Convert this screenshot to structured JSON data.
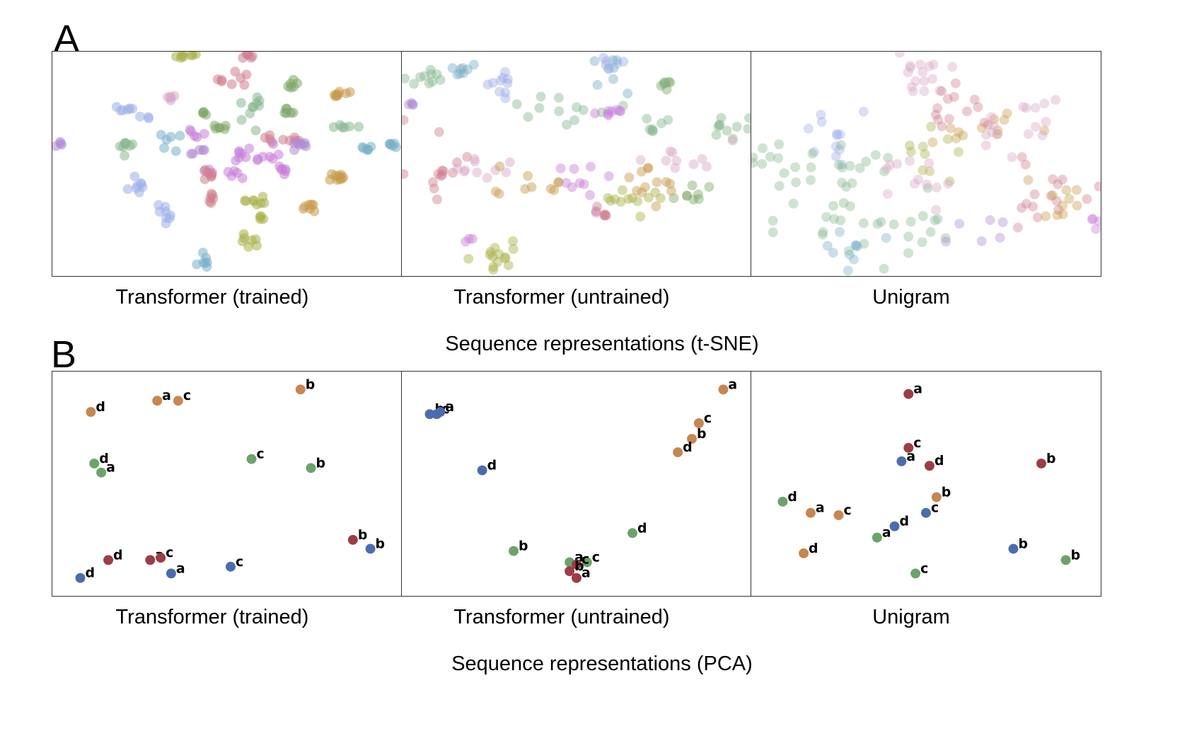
{
  "figure": {
    "panel_a": {
      "letter": "A",
      "section_title": "Sequence representations (t-SNE)"
    },
    "panel_b": {
      "letter": "B",
      "section_title": "Sequence representations (PCA)"
    },
    "subplot_titles": [
      "Transformer (trained)",
      "Transformer (untrained)",
      "Unigram"
    ]
  },
  "colors": {
    "tsne_palette": [
      "#9db0e8",
      "#d07f8e",
      "#7fa86a",
      "#c79a4c",
      "#a9b148",
      "#c77fd8",
      "#7ab0c8",
      "#b08ad6",
      "#88b890",
      "#d9a7c6"
    ],
    "pca": {
      "red": "#9b3d45",
      "blue": "#4c6cae",
      "green": "#6ba36b",
      "orange": "#c8864f"
    }
  },
  "chart_data": [
    {
      "type": "scatter",
      "method": "t-SNE",
      "title": "Transformer (trained)",
      "point_radius": 7,
      "opacity": 0.55,
      "clusters": [
        {
          "color": "#a9b148",
          "n": 8,
          "x": 0.38,
          "y": 0.02,
          "sx": 0.018,
          "sy": 0.008,
          "orient": "h"
        },
        {
          "color": "#d07f8e",
          "n": 6,
          "x": 0.56,
          "y": 0.02,
          "sx": 0.01,
          "sy": 0.006
        },
        {
          "color": "#d07f8e",
          "n": 8,
          "x": 0.53,
          "y": 0.12,
          "sx": 0.025,
          "sy": 0.025
        },
        {
          "color": "#7fa86a",
          "n": 6,
          "x": 0.68,
          "y": 0.15,
          "sx": 0.01,
          "sy": 0.01
        },
        {
          "color": "#c79a4c",
          "n": 8,
          "x": 0.83,
          "y": 0.19,
          "sx": 0.018,
          "sy": 0.006
        },
        {
          "color": "#d9a7c6",
          "n": 5,
          "x": 0.33,
          "y": 0.2,
          "sx": 0.01,
          "sy": 0.008
        },
        {
          "color": "#9db0e8",
          "n": 6,
          "x": 0.21,
          "y": 0.26,
          "sx": 0.015,
          "sy": 0.01
        },
        {
          "color": "#9db0e8",
          "n": 3,
          "x": 0.27,
          "y": 0.29,
          "sx": 0.01,
          "sy": 0.006
        },
        {
          "color": "#7fa86a",
          "n": 4,
          "x": 0.43,
          "y": 0.28,
          "sx": 0.01,
          "sy": 0.01
        },
        {
          "color": "#88b890",
          "n": 10,
          "x": 0.57,
          "y": 0.26,
          "sx": 0.02,
          "sy": 0.04
        },
        {
          "color": "#7fa86a",
          "n": 6,
          "x": 0.67,
          "y": 0.27,
          "sx": 0.012,
          "sy": 0.012
        },
        {
          "color": "#88b890",
          "n": 6,
          "x": 0.83,
          "y": 0.33,
          "sx": 0.025,
          "sy": 0.01
        },
        {
          "color": "#7fa86a",
          "n": 6,
          "x": 0.47,
          "y": 0.33,
          "sx": 0.01,
          "sy": 0.012
        },
        {
          "color": "#c77fd8",
          "n": 5,
          "x": 0.4,
          "y": 0.36,
          "sx": 0.015,
          "sy": 0.01
        },
        {
          "color": "#7ab0c8",
          "n": 6,
          "x": 0.32,
          "y": 0.39,
          "sx": 0.02,
          "sy": 0.02
        },
        {
          "color": "#d07f8e",
          "n": 4,
          "x": 0.62,
          "y": 0.39,
          "sx": 0.01,
          "sy": 0.01
        },
        {
          "color": "#88b890",
          "n": 8,
          "x": 0.21,
          "y": 0.44,
          "sx": 0.01,
          "sy": 0.03
        },
        {
          "color": "#b08ad6",
          "n": 5,
          "x": 0.42,
          "y": 0.44,
          "sx": 0.015,
          "sy": 0.008
        },
        {
          "color": "#c77fd8",
          "n": 14,
          "x": 0.56,
          "y": 0.46,
          "sx": 0.05,
          "sy": 0.02
        },
        {
          "color": "#d07f8e",
          "n": 5,
          "x": 0.68,
          "y": 0.4,
          "sx": 0.015,
          "sy": 0.01
        },
        {
          "color": "#b08ad6",
          "n": 8,
          "x": 0.7,
          "y": 0.42,
          "sx": 0.02,
          "sy": 0.015
        },
        {
          "color": "#7ab0c8",
          "n": 6,
          "x": 0.9,
          "y": 0.43,
          "sx": 0.012,
          "sy": 0.006
        },
        {
          "color": "#7ab0c8",
          "n": 6,
          "x": 0.97,
          "y": 0.42,
          "sx": 0.012,
          "sy": 0.006
        },
        {
          "color": "#b08ad6",
          "n": 4,
          "x": 0.02,
          "y": 0.41,
          "sx": 0.006,
          "sy": 0.006
        },
        {
          "color": "#c77fd8",
          "n": 8,
          "x": 0.49,
          "y": 0.54,
          "sx": 0.02,
          "sy": 0.01
        },
        {
          "color": "#d07f8e",
          "n": 6,
          "x": 0.45,
          "y": 0.55,
          "sx": 0.01,
          "sy": 0.015
        },
        {
          "color": "#c77fd8",
          "n": 6,
          "x": 0.66,
          "y": 0.52,
          "sx": 0.012,
          "sy": 0.01
        },
        {
          "color": "#c79a4c",
          "n": 10,
          "x": 0.82,
          "y": 0.56,
          "sx": 0.02,
          "sy": 0.01
        },
        {
          "color": "#9db0e8",
          "n": 8,
          "x": 0.24,
          "y": 0.6,
          "sx": 0.015,
          "sy": 0.025
        },
        {
          "color": "#d07f8e",
          "n": 6,
          "x": 0.46,
          "y": 0.65,
          "sx": 0.008,
          "sy": 0.015
        },
        {
          "color": "#a9b148",
          "n": 8,
          "x": 0.59,
          "y": 0.67,
          "sx": 0.02,
          "sy": 0.012
        },
        {
          "color": "#c79a4c",
          "n": 7,
          "x": 0.73,
          "y": 0.69,
          "sx": 0.02,
          "sy": 0.01
        },
        {
          "color": "#a9b148",
          "n": 4,
          "x": 0.6,
          "y": 0.74,
          "sx": 0.008,
          "sy": 0.006
        },
        {
          "color": "#9db0e8",
          "n": 8,
          "x": 0.33,
          "y": 0.73,
          "sx": 0.015,
          "sy": 0.02
        },
        {
          "color": "#a9b148",
          "n": 7,
          "x": 0.57,
          "y": 0.84,
          "sx": 0.02,
          "sy": 0.015
        },
        {
          "color": "#7ab0c8",
          "n": 7,
          "x": 0.43,
          "y": 0.93,
          "sx": 0.015,
          "sy": 0.03
        }
      ]
    },
    {
      "type": "scatter",
      "method": "t-SNE",
      "title": "Transformer (untrained)",
      "point_radius": 7,
      "opacity": 0.45,
      "clusters": [
        {
          "color": "#88b890",
          "n": 10,
          "x": 0.06,
          "y": 0.11,
          "sx": 0.03,
          "sy": 0.03
        },
        {
          "color": "#7ab0c8",
          "n": 8,
          "x": 0.16,
          "y": 0.09,
          "sx": 0.02,
          "sy": 0.02
        },
        {
          "color": "#9db0e8",
          "n": 10,
          "x": 0.29,
          "y": 0.13,
          "sx": 0.02,
          "sy": 0.04
        },
        {
          "color": "#7ab0c8",
          "n": 8,
          "x": 0.58,
          "y": 0.09,
          "sx": 0.04,
          "sy": 0.04
        },
        {
          "color": "#9db0e8",
          "n": 6,
          "x": 0.6,
          "y": 0.05,
          "sx": 0.02,
          "sy": 0.02
        },
        {
          "color": "#b08ad6",
          "n": 4,
          "x": 0.03,
          "y": 0.24,
          "sx": 0.01,
          "sy": 0.02
        },
        {
          "color": "#88b890",
          "n": 12,
          "x": 0.45,
          "y": 0.26,
          "sx": 0.07,
          "sy": 0.03
        },
        {
          "color": "#c77fd8",
          "n": 8,
          "x": 0.58,
          "y": 0.26,
          "sx": 0.03,
          "sy": 0.01
        },
        {
          "color": "#7fa86a",
          "n": 6,
          "x": 0.76,
          "y": 0.14,
          "sx": 0.015,
          "sy": 0.01
        },
        {
          "color": "#88b890",
          "n": 8,
          "x": 0.72,
          "y": 0.3,
          "sx": 0.02,
          "sy": 0.06
        },
        {
          "color": "#88b890",
          "n": 10,
          "x": 0.94,
          "y": 0.32,
          "sx": 0.03,
          "sy": 0.03
        },
        {
          "color": "#d07f8e",
          "n": 14,
          "x": 0.1,
          "y": 0.52,
          "sx": 0.04,
          "sy": 0.08
        },
        {
          "color": "#d9a7c6",
          "n": 10,
          "x": 0.22,
          "y": 0.52,
          "sx": 0.06,
          "sy": 0.02
        },
        {
          "color": "#c79a4c",
          "n": 10,
          "x": 0.35,
          "y": 0.58,
          "sx": 0.06,
          "sy": 0.03
        },
        {
          "color": "#c77fd8",
          "n": 10,
          "x": 0.48,
          "y": 0.62,
          "sx": 0.05,
          "sy": 0.05
        },
        {
          "color": "#d07f8e",
          "n": 6,
          "x": 0.56,
          "y": 0.72,
          "sx": 0.03,
          "sy": 0.02
        },
        {
          "color": "#c79a4c",
          "n": 12,
          "x": 0.73,
          "y": 0.56,
          "sx": 0.05,
          "sy": 0.05
        },
        {
          "color": "#d9a7c6",
          "n": 10,
          "x": 0.8,
          "y": 0.48,
          "sx": 0.05,
          "sy": 0.04
        },
        {
          "color": "#a9b148",
          "n": 12,
          "x": 0.66,
          "y": 0.66,
          "sx": 0.05,
          "sy": 0.03
        },
        {
          "color": "#7fa86a",
          "n": 8,
          "x": 0.84,
          "y": 0.62,
          "sx": 0.03,
          "sy": 0.02
        },
        {
          "color": "#c77fd8",
          "n": 3,
          "x": 0.19,
          "y": 0.84,
          "sx": 0.006,
          "sy": 0.01
        },
        {
          "color": "#a9b148",
          "n": 14,
          "x": 0.27,
          "y": 0.92,
          "sx": 0.035,
          "sy": 0.03
        }
      ]
    },
    {
      "type": "scatter",
      "method": "t-SNE",
      "title": "Unigram",
      "point_radius": 7,
      "opacity": 0.4,
      "clusters": [
        {
          "color": "#d9a7c6",
          "n": 16,
          "x": 0.5,
          "y": 0.12,
          "sx": 0.05,
          "sy": 0.06
        },
        {
          "color": "#d07f8e",
          "n": 14,
          "x": 0.62,
          "y": 0.26,
          "sx": 0.07,
          "sy": 0.06
        },
        {
          "color": "#c79a4c",
          "n": 12,
          "x": 0.66,
          "y": 0.36,
          "sx": 0.08,
          "sy": 0.08
        },
        {
          "color": "#d9a7c6",
          "n": 16,
          "x": 0.74,
          "y": 0.34,
          "sx": 0.08,
          "sy": 0.07
        },
        {
          "color": "#9db0e8",
          "n": 12,
          "x": 0.24,
          "y": 0.36,
          "sx": 0.05,
          "sy": 0.08
        },
        {
          "color": "#88b890",
          "n": 16,
          "x": 0.26,
          "y": 0.52,
          "sx": 0.08,
          "sy": 0.08
        },
        {
          "color": "#88b890",
          "n": 10,
          "x": 0.06,
          "y": 0.5,
          "sx": 0.03,
          "sy": 0.04
        },
        {
          "color": "#a9b148",
          "n": 10,
          "x": 0.54,
          "y": 0.44,
          "sx": 0.06,
          "sy": 0.06
        },
        {
          "color": "#d07f8e",
          "n": 16,
          "x": 0.82,
          "y": 0.64,
          "sx": 0.08,
          "sy": 0.08
        },
        {
          "color": "#c79a4c",
          "n": 10,
          "x": 0.9,
          "y": 0.7,
          "sx": 0.05,
          "sy": 0.05
        },
        {
          "color": "#d9a7c6",
          "n": 12,
          "x": 0.5,
          "y": 0.58,
          "sx": 0.06,
          "sy": 0.06
        },
        {
          "color": "#88b890",
          "n": 18,
          "x": 0.22,
          "y": 0.75,
          "sx": 0.1,
          "sy": 0.07
        },
        {
          "color": "#7ab0c8",
          "n": 10,
          "x": 0.28,
          "y": 0.88,
          "sx": 0.04,
          "sy": 0.05
        },
        {
          "color": "#88b890",
          "n": 10,
          "x": 0.46,
          "y": 0.8,
          "sx": 0.05,
          "sy": 0.06
        },
        {
          "color": "#b08ad6",
          "n": 6,
          "x": 0.66,
          "y": 0.78,
          "sx": 0.04,
          "sy": 0.04
        },
        {
          "color": "#c77fd8",
          "n": 4,
          "x": 0.98,
          "y": 0.76,
          "sx": 0.01,
          "sy": 0.02
        }
      ]
    },
    {
      "type": "scatter",
      "method": "PCA",
      "title": "Transformer (trained)",
      "points": [
        {
          "label": "d",
          "color": "orange",
          "x": 0.11,
          "y": 0.18
        },
        {
          "label": "a",
          "color": "orange",
          "x": 0.3,
          "y": 0.13
        },
        {
          "label": "c",
          "color": "orange",
          "x": 0.36,
          "y": 0.13
        },
        {
          "label": "b",
          "color": "orange",
          "x": 0.71,
          "y": 0.08
        },
        {
          "label": "d",
          "color": "green",
          "x": 0.12,
          "y": 0.41
        },
        {
          "label": "a",
          "color": "green",
          "x": 0.14,
          "y": 0.45
        },
        {
          "label": "c",
          "color": "green",
          "x": 0.57,
          "y": 0.39
        },
        {
          "label": "b",
          "color": "green",
          "x": 0.74,
          "y": 0.43
        },
        {
          "label": "d",
          "color": "red",
          "x": 0.16,
          "y": 0.84
        },
        {
          "label": "a",
          "color": "red",
          "x": 0.28,
          "y": 0.84
        },
        {
          "label": "c",
          "color": "red",
          "x": 0.31,
          "y": 0.83
        },
        {
          "label": "b",
          "color": "red",
          "x": 0.86,
          "y": 0.75
        },
        {
          "label": "d",
          "color": "blue",
          "x": 0.08,
          "y": 0.92
        },
        {
          "label": "a",
          "color": "blue",
          "x": 0.34,
          "y": 0.9
        },
        {
          "label": "c",
          "color": "blue",
          "x": 0.51,
          "y": 0.87
        },
        {
          "label": "b",
          "color": "blue",
          "x": 0.91,
          "y": 0.79
        }
      ]
    },
    {
      "type": "scatter",
      "method": "PCA",
      "title": "Transformer (untrained)",
      "points": [
        {
          "label": "b",
          "color": "blue",
          "x": 0.08,
          "y": 0.19
        },
        {
          "label": "c",
          "color": "blue",
          "x": 0.1,
          "y": 0.19
        },
        {
          "label": "a",
          "color": "blue",
          "x": 0.11,
          "y": 0.18
        },
        {
          "label": "d",
          "color": "blue",
          "x": 0.23,
          "y": 0.44
        },
        {
          "label": "a",
          "color": "orange",
          "x": 0.92,
          "y": 0.08
        },
        {
          "label": "c",
          "color": "orange",
          "x": 0.85,
          "y": 0.23
        },
        {
          "label": "b",
          "color": "orange",
          "x": 0.83,
          "y": 0.3
        },
        {
          "label": "d",
          "color": "orange",
          "x": 0.79,
          "y": 0.36
        },
        {
          "label": "d",
          "color": "green",
          "x": 0.66,
          "y": 0.72
        },
        {
          "label": "b",
          "color": "green",
          "x": 0.32,
          "y": 0.8
        },
        {
          "label": "a",
          "color": "green",
          "x": 0.48,
          "y": 0.85
        },
        {
          "label": "c",
          "color": "green",
          "x": 0.53,
          "y": 0.85
        },
        {
          "label": "c",
          "color": "red",
          "x": 0.5,
          "y": 0.86
        },
        {
          "label": "b",
          "color": "red",
          "x": 0.48,
          "y": 0.89
        },
        {
          "label": "a",
          "color": "red",
          "x": 0.5,
          "y": 0.92
        }
      ]
    },
    {
      "type": "scatter",
      "method": "PCA",
      "title": "Unigram",
      "points": [
        {
          "label": "a",
          "color": "red",
          "x": 0.45,
          "y": 0.1
        },
        {
          "label": "c",
          "color": "red",
          "x": 0.45,
          "y": 0.34
        },
        {
          "label": "d",
          "color": "red",
          "x": 0.51,
          "y": 0.42
        },
        {
          "label": "b",
          "color": "red",
          "x": 0.83,
          "y": 0.41
        },
        {
          "label": "a",
          "color": "blue",
          "x": 0.43,
          "y": 0.4
        },
        {
          "label": "c",
          "color": "blue",
          "x": 0.5,
          "y": 0.63
        },
        {
          "label": "d",
          "color": "blue",
          "x": 0.41,
          "y": 0.69
        },
        {
          "label": "b",
          "color": "blue",
          "x": 0.75,
          "y": 0.79
        },
        {
          "label": "d",
          "color": "green",
          "x": 0.09,
          "y": 0.58
        },
        {
          "label": "a",
          "color": "green",
          "x": 0.36,
          "y": 0.74
        },
        {
          "label": "c",
          "color": "green",
          "x": 0.47,
          "y": 0.9
        },
        {
          "label": "b",
          "color": "green",
          "x": 0.9,
          "y": 0.84
        },
        {
          "label": "a",
          "color": "orange",
          "x": 0.17,
          "y": 0.63
        },
        {
          "label": "c",
          "color": "orange",
          "x": 0.25,
          "y": 0.64
        },
        {
          "label": "b",
          "color": "orange",
          "x": 0.53,
          "y": 0.56
        },
        {
          "label": "d",
          "color": "orange",
          "x": 0.15,
          "y": 0.81
        }
      ]
    }
  ]
}
